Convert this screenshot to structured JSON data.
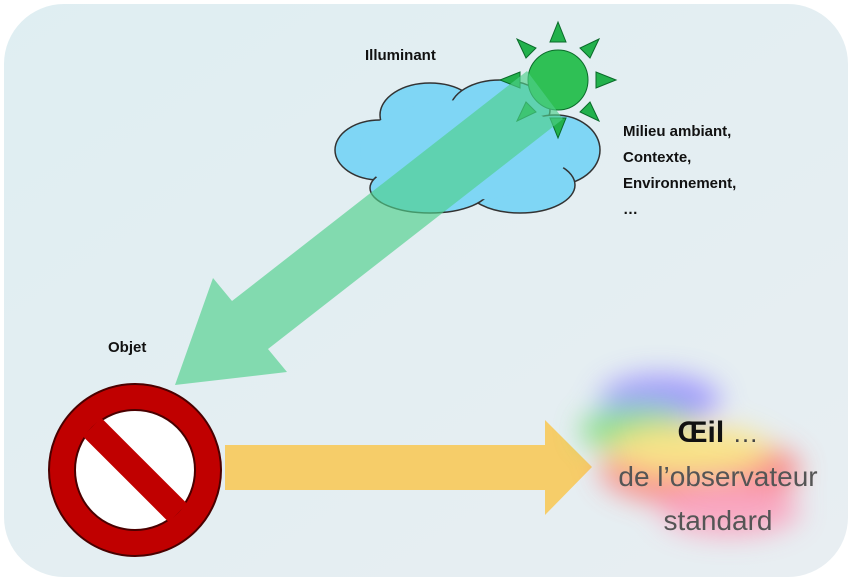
{
  "illuminant": {
    "label": "Illuminant"
  },
  "environment": {
    "lines": [
      "Milieu ambiant,",
      "Contexte,",
      "Environnement,",
      "…"
    ]
  },
  "object": {
    "label": "Objet"
  },
  "eye": {
    "title": "Œil",
    "suffix": "…",
    "lines": [
      "de l’observateur",
      "standard"
    ]
  }
}
